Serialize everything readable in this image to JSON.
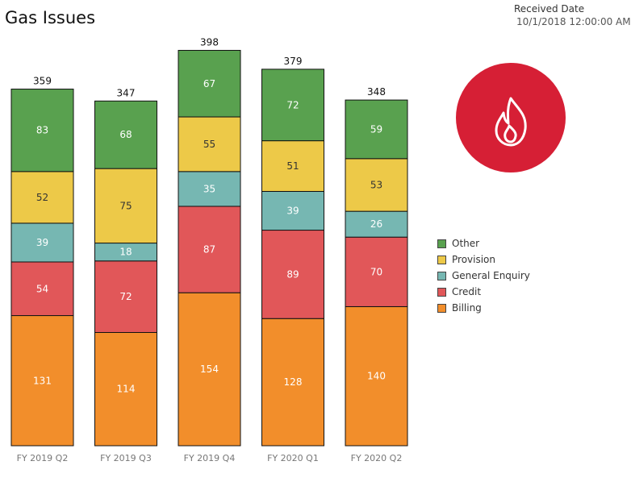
{
  "title": "Gas Issues",
  "filter": {
    "label": "Received Date",
    "value": "10/1/2018 12:00:00 AM"
  },
  "legend": [
    {
      "label": "Other",
      "color": "#59a14f"
    },
    {
      "label": "Provision",
      "color": "#edc948"
    },
    {
      "label": "General Enquiry",
      "color": "#76b7b2"
    },
    {
      "label": "Credit",
      "color": "#e15759"
    },
    {
      "label": "Billing",
      "color": "#f28e2b"
    }
  ],
  "badge": {
    "icon": "flame-icon",
    "color": "#d61f35"
  },
  "chart_data": {
    "type": "bar",
    "stacked": true,
    "categories": [
      "FY 2019 Q2",
      "FY 2019 Q3",
      "FY 2019 Q4",
      "FY 2020 Q1",
      "FY 2020 Q2"
    ],
    "totals": [
      359,
      347,
      398,
      379,
      348
    ],
    "series": [
      {
        "name": "Billing",
        "color": "#f28e2b",
        "values": [
          131,
          114,
          154,
          128,
          140
        ]
      },
      {
        "name": "Credit",
        "color": "#e15759",
        "values": [
          54,
          72,
          87,
          89,
          70
        ]
      },
      {
        "name": "General Enquiry",
        "color": "#76b7b2",
        "values": [
          39,
          18,
          35,
          39,
          26
        ]
      },
      {
        "name": "Provision",
        "color": "#edc948",
        "values": [
          52,
          75,
          55,
          51,
          53
        ]
      },
      {
        "name": "Other",
        "color": "#59a14f",
        "values": [
          83,
          68,
          67,
          72,
          59
        ]
      }
    ],
    "ylim": [
      0,
      400
    ],
    "grid": false,
    "legend_position": "right"
  }
}
